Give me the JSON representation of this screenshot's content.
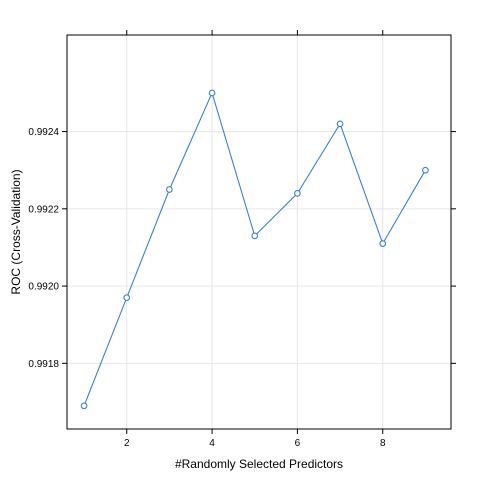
{
  "chart_data": {
    "type": "line",
    "title": "",
    "xlabel": "#Randomly Selected Predictors",
    "ylabel": "ROC (Cross-Validation)",
    "xlim": [
      0.6,
      9.6
    ],
    "ylim": [
      0.99163,
      0.99265
    ],
    "x_ticks": [
      2,
      4,
      6,
      8
    ],
    "y_ticks": [
      0.9918,
      0.992,
      0.9922,
      0.9924
    ],
    "y_tick_labels": [
      "0.9918",
      "0.9920",
      "0.9922",
      "0.9924"
    ],
    "grid": true,
    "series_color": "#3a7fd5",
    "series": [
      {
        "x": [
          1,
          2,
          3,
          4,
          5,
          6,
          7,
          8,
          9
        ],
        "values": [
          0.99169,
          0.99197,
          0.99225,
          0.9925,
          0.99213,
          0.99224,
          0.99242,
          0.99211,
          0.9923
        ]
      }
    ]
  }
}
